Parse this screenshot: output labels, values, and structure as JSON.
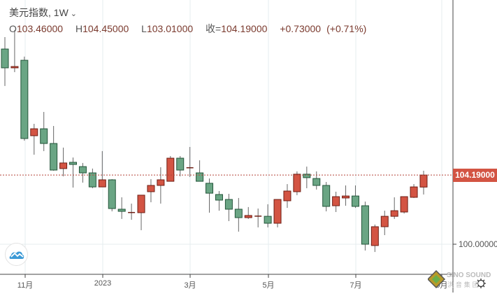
{
  "legend": {
    "title": "美元指数, 1W",
    "open_label": "O",
    "open": "103.46000",
    "high_label": "H",
    "high": "104.45000",
    "low_label": "L",
    "low": "103.01000",
    "close_label": "收=",
    "close": "104.19000",
    "change": "+0.73000",
    "change_pct": "(+0.71%)"
  },
  "current_price_tag": "104.19000",
  "colors": {
    "up_fill": "#d35443",
    "up_border": "#6e1e14",
    "down_fill": "#6aa584",
    "down_border": "#24553a",
    "wick": "#666666",
    "price_line": "#b5443a",
    "price_tag": "#d35443"
  },
  "watermark": {
    "brand": "SINO SOUND",
    "sub": "洪 音 集 团"
  },
  "icons": [
    "cloud-chart-icon",
    "settings-icon",
    "chevron-down-icon"
  ],
  "chart_data": {
    "type": "candlestick",
    "title": "美元指数, 1W",
    "y_ticks": [
      "100.00000"
    ],
    "x_ticks": [
      {
        "label": "11月",
        "index": 2
      },
      {
        "label": "2023",
        "index": 10
      },
      {
        "label": "3月",
        "index": 19
      },
      {
        "label": "5月",
        "index": 27
      },
      {
        "label": "7月",
        "index": 36
      },
      {
        "label": "9月",
        "index": 45
      }
    ],
    "current_price": 104.19,
    "candles": [
      [
        111.82,
        112.54,
        109.58,
        110.68
      ],
      [
        110.68,
        112.97,
        110.42,
        110.76
      ],
      [
        111.14,
        111.36,
        106.27,
        106.4
      ],
      [
        106.57,
        107.29,
        105.42,
        106.99
      ],
      [
        106.99,
        108.01,
        105.64,
        106.1
      ],
      [
        106.1,
        107.16,
        104.45,
        104.49
      ],
      [
        104.58,
        105.85,
        104.11,
        104.92
      ],
      [
        104.96,
        105.25,
        103.43,
        104.83
      ],
      [
        104.7,
        104.92,
        103.73,
        104.32
      ],
      [
        104.32,
        104.58,
        103.39,
        103.47
      ],
      [
        103.47,
        105.64,
        103.47,
        103.9
      ],
      [
        103.9,
        103.94,
        101.99,
        102.16
      ],
      [
        102.12,
        102.84,
        101.53,
        101.99
      ],
      [
        101.91,
        102.46,
        101.48,
        101.92
      ],
      [
        101.91,
        102.97,
        100.85,
        102.97
      ],
      [
        103.18,
        103.94,
        102.54,
        103.56
      ],
      [
        103.56,
        104.66,
        102.46,
        103.9
      ],
      [
        103.81,
        105.34,
        103.81,
        105.21
      ],
      [
        105.21,
        105.34,
        104.11,
        104.49
      ],
      [
        104.62,
        105.89,
        104.07,
        104.63
      ],
      [
        104.32,
        105.08,
        103.81,
        103.81
      ],
      [
        103.69,
        103.98,
        101.91,
        103.09
      ],
      [
        103.01,
        103.22,
        102.03,
        102.67
      ],
      [
        102.71,
        103.05,
        101.4,
        102.12
      ],
      [
        102.12,
        102.8,
        100.76,
        101.61
      ],
      [
        101.61,
        102.25,
        101.53,
        101.74
      ],
      [
        101.69,
        102.16,
        101.02,
        101.7
      ],
      [
        101.69,
        102.42,
        101.02,
        101.27
      ],
      [
        101.27,
        102.71,
        101.02,
        102.71
      ],
      [
        102.63,
        103.64,
        102.2,
        103.22
      ],
      [
        103.18,
        104.41,
        102.97,
        104.24
      ],
      [
        104.24,
        104.7,
        103.39,
        104.03
      ],
      [
        103.98,
        104.41,
        103.31,
        103.56
      ],
      [
        103.56,
        103.77,
        101.99,
        102.29
      ],
      [
        102.33,
        103.18,
        101.95,
        102.88
      ],
      [
        102.8,
        103.56,
        102.33,
        102.92
      ],
      [
        102.92,
        103.56,
        102.2,
        102.29
      ],
      [
        102.33,
        102.58,
        99.62,
        100.0
      ],
      [
        99.92,
        101.19,
        99.53,
        101.06
      ],
      [
        101.06,
        102.03,
        100.55,
        101.69
      ],
      [
        101.69,
        102.84,
        101.53,
        102.03
      ],
      [
        101.95,
        102.88,
        101.86,
        102.88
      ],
      [
        102.84,
        103.64,
        102.8,
        103.47
      ],
      [
        103.46,
        104.45,
        103.01,
        104.19
      ]
    ],
    "candle_format": [
      "open",
      "high",
      "low",
      "close"
    ]
  }
}
